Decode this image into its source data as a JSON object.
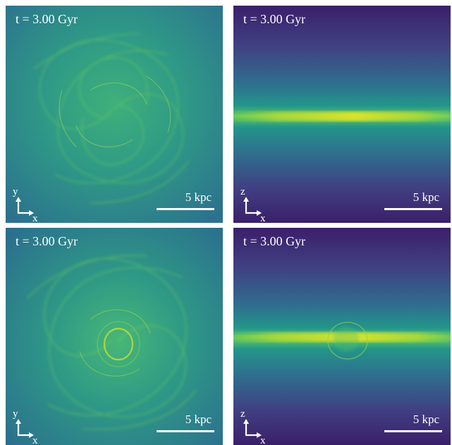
{
  "panels": [
    {
      "id": "top-left",
      "time": "t = 3.00 Gyr",
      "scale": "5 kpc",
      "axis_v": "y",
      "axis_h": "x",
      "view": "face-on"
    },
    {
      "id": "top-right",
      "time": "t = 3.00 Gyr",
      "scale": "5 kpc",
      "axis_v": "z",
      "axis_h": "x",
      "view": "edge-on"
    },
    {
      "id": "bottom-left",
      "time": "t = 3.00 Gyr",
      "scale": "5 kpc",
      "axis_v": "y",
      "axis_h": "x",
      "view": "face-on"
    },
    {
      "id": "bottom-right",
      "time": "t = 3.00 Gyr",
      "scale": "5 kpc",
      "axis_v": "z",
      "axis_h": "x",
      "view": "edge-on"
    }
  ],
  "colors": {
    "dark": "#440154",
    "mid": "#2a788e",
    "teal": "#22a884",
    "green": "#7ad151",
    "yellow": "#fde725"
  }
}
